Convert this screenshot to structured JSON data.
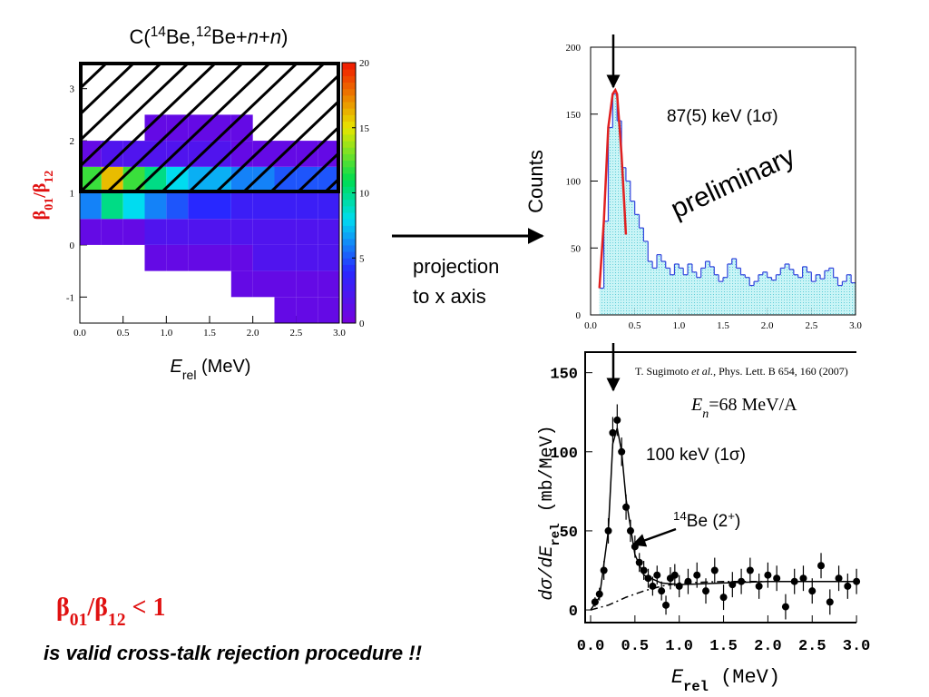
{
  "chart_data": [
    {
      "type": "heatmap",
      "title": [
        "C(",
        "14",
        "Be,",
        "12",
        "Be+",
        "n",
        "+",
        "n",
        ")"
      ],
      "x_label": [
        "E",
        "rel",
        " (MeV)"
      ],
      "y_label": [
        "β",
        "01",
        "/β",
        "12"
      ],
      "xlim": [
        0,
        3
      ],
      "ylim": [
        -1.5,
        3.5
      ],
      "xticks": [
        {
          "value": 0,
          "label": "0.0"
        },
        0.5,
        {
          "value": 1,
          "label": "1.0"
        },
        1.5,
        {
          "value": 2,
          "label": "2.0"
        },
        2.5,
        {
          "value": 3,
          "label": "3.0"
        }
      ],
      "yticks": [
        -1,
        0,
        1,
        2,
        3
      ],
      "x_bins": [
        0,
        0.25,
        0.5,
        0.75,
        1,
        1.25,
        1.5,
        1.75,
        2,
        2.25,
        2.5,
        2.75,
        3
      ],
      "y_bins": [
        -1.5,
        -1,
        -0.5,
        0,
        0.5,
        1,
        1.5,
        2,
        2.5,
        3,
        3.5
      ],
      "values": [
        [
          0,
          0,
          0,
          0,
          0,
          0,
          0,
          0,
          0,
          1,
          1,
          1
        ],
        [
          0,
          0,
          0,
          0,
          0,
          0,
          0,
          1,
          1,
          1,
          1,
          1
        ],
        [
          0,
          0,
          0,
          1,
          1,
          1,
          1,
          1,
          2,
          2,
          2,
          2
        ],
        [
          1,
          1,
          1,
          2,
          2,
          2,
          2,
          2,
          2,
          2,
          2,
          2
        ],
        [
          6,
          10,
          8,
          6,
          5,
          4,
          4,
          3,
          3,
          3,
          3,
          3
        ],
        [
          12,
          16,
          12,
          10,
          8,
          7,
          7,
          6,
          6,
          5,
          5,
          5
        ],
        [
          1,
          2,
          2,
          2,
          2,
          2,
          2,
          1,
          1,
          1,
          1,
          1
        ],
        [
          0,
          0,
          0,
          1,
          1,
          1,
          1,
          1,
          0,
          0,
          0,
          0
        ],
        [
          0,
          0,
          0,
          0,
          0,
          0,
          0,
          0,
          0,
          0,
          0,
          0
        ],
        [
          0,
          0,
          0,
          0,
          0,
          0,
          0,
          0,
          0,
          0,
          0,
          0
        ]
      ],
      "zlim": [
        0,
        20
      ],
      "zticks": [
        0,
        5,
        10,
        15,
        20
      ]
    },
    {
      "type": "histogram",
      "y_label": "Counts",
      "xlim": [
        0,
        3
      ],
      "ylim": [
        0,
        200
      ],
      "xticks": [
        {
          "value": 0,
          "label": "0.0"
        },
        0.5,
        {
          "value": 1,
          "label": "1.0"
        },
        1.5,
        {
          "value": 2,
          "label": "2.0"
        },
        2.5,
        {
          "value": 3,
          "label": "3.0"
        }
      ],
      "yticks": [
        0,
        50,
        100,
        150,
        200
      ],
      "bins": [
        0.1,
        0.15,
        0.2,
        0.25,
        0.3,
        0.35,
        0.4,
        0.45,
        0.5,
        0.55,
        0.6,
        0.65,
        0.7,
        0.75,
        0.8,
        0.85,
        0.9,
        0.95,
        1.0,
        1.05,
        1.1,
        1.15,
        1.2,
        1.25,
        1.3,
        1.35,
        1.4,
        1.45,
        1.5,
        1.55,
        1.6,
        1.65,
        1.7,
        1.75,
        1.8,
        1.85,
        1.9,
        1.95,
        2.0,
        2.05,
        2.1,
        2.15,
        2.2,
        2.25,
        2.3,
        2.35,
        2.4,
        2.45,
        2.5,
        2.55,
        2.6,
        2.65,
        2.7,
        2.75,
        2.8,
        2.85,
        2.9,
        2.95,
        3.0
      ],
      "values": [
        20,
        70,
        140,
        165,
        145,
        110,
        100,
        85,
        75,
        65,
        55,
        40,
        35,
        45,
        40,
        35,
        30,
        38,
        35,
        30,
        38,
        32,
        28,
        35,
        40,
        36,
        30,
        25,
        28,
        38,
        42,
        35,
        30,
        28,
        22,
        25,
        30,
        32,
        28,
        26,
        30,
        35,
        38,
        34,
        30,
        28,
        36,
        32,
        25,
        30,
        27,
        33,
        35,
        28,
        22,
        25,
        30,
        24
      ],
      "color": "#3344dd",
      "fill": "#9fe8ee",
      "fit": {
        "color": "#e02020",
        "x": [
          0.1,
          0.15,
          0.2,
          0.25,
          0.28,
          0.3,
          0.35,
          0.4
        ],
        "values": [
          20,
          70,
          140,
          165,
          168,
          165,
          120,
          60
        ]
      },
      "annotations": [
        "87(5) keV (1σ)",
        "preliminary"
      ]
    },
    {
      "type": "scatter",
      "x_label": [
        "E",
        "rel",
        "  (MeV)"
      ],
      "y_label": [
        "dσ/dE",
        "rel",
        "  (mb/MeV)"
      ],
      "xlim": [
        0,
        3
      ],
      "ylim": [
        -8,
        163
      ],
      "xticks": [
        {
          "value": 0,
          "label": "0.0"
        },
        0.5,
        {
          "value": 1,
          "label": "1.0"
        },
        1.5,
        {
          "value": 2,
          "label": "2.0"
        },
        2.5,
        {
          "value": 3,
          "label": "3.0"
        }
      ],
      "yticks": [
        0,
        50,
        100,
        150
      ],
      "x": [
        0.05,
        0.1,
        0.15,
        0.2,
        0.25,
        0.3,
        0.35,
        0.4,
        0.45,
        0.5,
        0.55,
        0.6,
        0.65,
        0.7,
        0.75,
        0.8,
        0.85,
        0.9,
        0.95,
        1.0,
        1.1,
        1.2,
        1.3,
        1.4,
        1.5,
        1.6,
        1.7,
        1.8,
        1.9,
        2.0,
        2.1,
        2.2,
        2.3,
        2.4,
        2.5,
        2.6,
        2.7,
        2.8,
        2.9,
        3.0
      ],
      "values": [
        5,
        10,
        25,
        50,
        112,
        120,
        100,
        65,
        50,
        40,
        30,
        25,
        20,
        15,
        22,
        12,
        3,
        20,
        22,
        15,
        18,
        22,
        12,
        25,
        8,
        16,
        18,
        25,
        15,
        22,
        20,
        2,
        18,
        20,
        12,
        28,
        5,
        20,
        15,
        18
      ],
      "errors": [
        3,
        4,
        6,
        8,
        10,
        10,
        9,
        8,
        7,
        7,
        6,
        6,
        6,
        6,
        6,
        6,
        6,
        7,
        7,
        7,
        8,
        8,
        8,
        8,
        8,
        8,
        8,
        8,
        8,
        8,
        8,
        8,
        8,
        8,
        8,
        8,
        8,
        8,
        8,
        8
      ],
      "color": "#000000",
      "fit": {
        "x": [
          0,
          0.1,
          0.2,
          0.25,
          0.3,
          0.35,
          0.4,
          0.5,
          0.6,
          0.8,
          1.0,
          1.5,
          2,
          3
        ],
        "values": [
          0,
          8,
          50,
          105,
          115,
          100,
          70,
          35,
          22,
          17,
          16,
          17,
          18,
          18
        ]
      },
      "background": {
        "x": [
          0,
          0.2,
          0.4,
          0.6,
          0.8,
          1.0,
          1.5,
          3
        ],
        "values": [
          0,
          3,
          8,
          12,
          15,
          17,
          18,
          18
        ]
      },
      "citation": [
        "T. Sugimoto ",
        "et al.",
        ", Phys. Lett. B 654, 160 (2007)"
      ],
      "beam": [
        "E",
        "n",
        "=68 MeV/A"
      ],
      "width_label": "100 keV (1σ)",
      "state_label": [
        "14",
        "Be (2",
        "+",
        ")"
      ]
    }
  ],
  "slide": {
    "projection": [
      "projection",
      "to x axis"
    ],
    "condition": [
      "β",
      "01",
      "/β",
      "12",
      " < 1"
    ],
    "statement": "is valid cross-talk rejection procedure !!"
  }
}
